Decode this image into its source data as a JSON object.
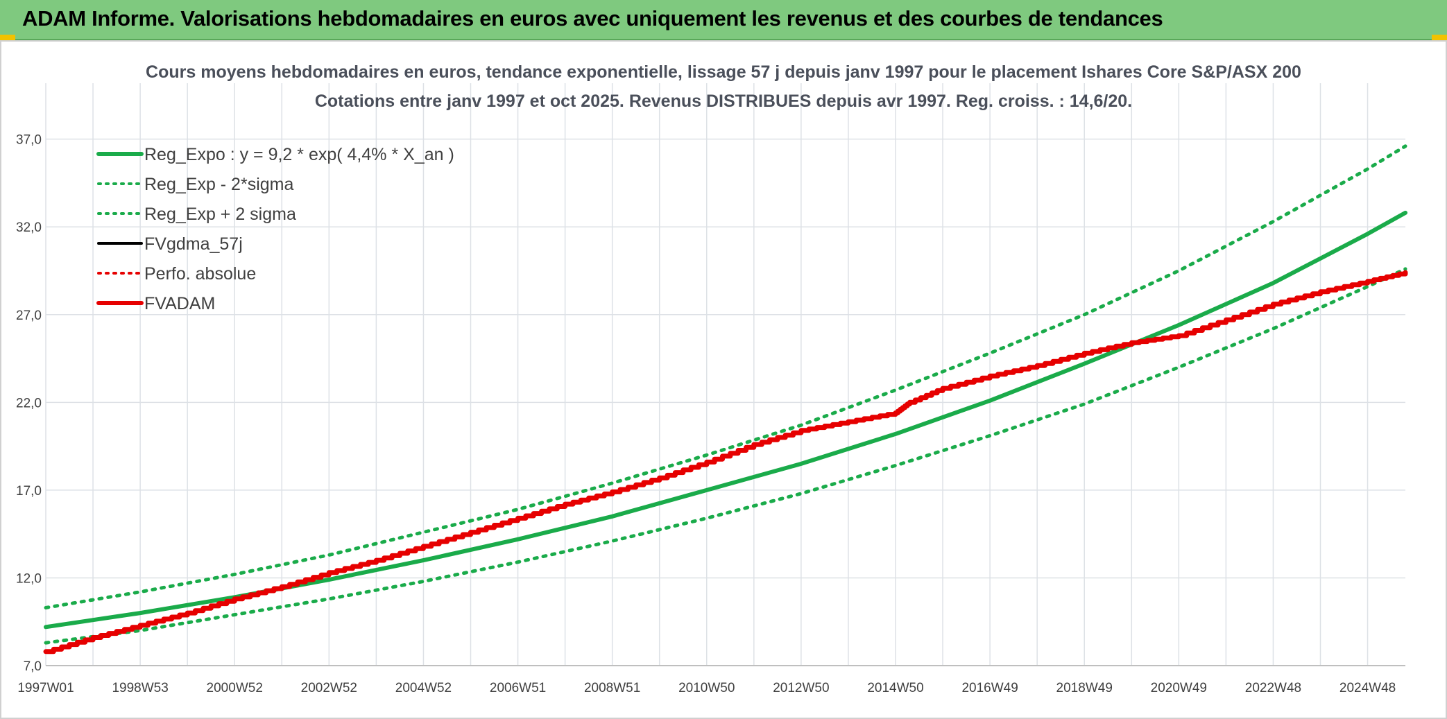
{
  "banner": {
    "title": "ADAM Informe. Valorisations hebdomadaires en euros avec uniquement les revenus et des courbes de tendances"
  },
  "colors": {
    "banner_bg": "#7fc97f",
    "reg_green": "#1aab4a",
    "fvadam_red": "#e60000",
    "grid": "#dde1e6",
    "corner_accent": "#f2c200"
  },
  "chart_data": {
    "type": "line",
    "title": "Cours moyens hebdomadaires en euros, tendance exponentielle, lissage 57 j depuis janv 1997 pour le placement Ishares Core S&P/ASX 200",
    "subtitle": "Cotations entre janv 1997 et oct 2025. Revenus DISTRIBUES depuis avr 1997. Reg. croiss. : 14,6/20.",
    "xlabel": "",
    "ylabel": "",
    "ylim": [
      7,
      39
    ],
    "xlim": [
      1997.0,
      2025.8
    ],
    "yticks": [
      7.0,
      12.0,
      17.0,
      22.0,
      27.0,
      32.0,
      37.0
    ],
    "ytick_labels": [
      "7,0",
      "12,0",
      "17,0",
      "22,0",
      "27,0",
      "32,0",
      "37,0"
    ],
    "xticks": [
      1997.0,
      1999.0,
      2001.0,
      2003.0,
      2005.0,
      2007.0,
      2009.0,
      2011.0,
      2013.0,
      2015.0,
      2017.0,
      2019.0,
      2021.0,
      2023.0,
      2025.0
    ],
    "xtick_labels": [
      "1997W01",
      "1998W53",
      "2000W52",
      "2002W52",
      "2004W52",
      "2006W51",
      "2008W51",
      "2010W50",
      "2012W50",
      "2014W50",
      "2016W49",
      "2018W49",
      "2020W49",
      "2022W48",
      "2024W48"
    ],
    "grid": true,
    "legend_position": "top-left",
    "legend": [
      {
        "label": "Reg_Expo : y = 9,2 * exp( 4,4% *  X_an )",
        "style": "solid-thick",
        "color": "#1aab4a"
      },
      {
        "label": "Reg_Exp - 2*sigma",
        "style": "dotted",
        "color": "#1aab4a"
      },
      {
        "label": "Reg_Exp + 2 sigma",
        "style": "dotted",
        "color": "#1aab4a"
      },
      {
        "label": "FVgdma_57j",
        "style": "solid",
        "color": "#000000"
      },
      {
        "label": "Perfo. absolue",
        "style": "dotted",
        "color": "#e60000"
      },
      {
        "label": "FVADAM",
        "style": "solid-thick",
        "color": "#e60000"
      }
    ],
    "series": [
      {
        "name": "Reg_Expo : y = 9,2 * exp( 4,4% *  X_an )",
        "x": [
          1997,
          1999,
          2001,
          2003,
          2005,
          2007,
          2009,
          2011,
          2013,
          2015,
          2017,
          2019,
          2021,
          2023,
          2025,
          2025.8
        ],
        "values": [
          9.2,
          10.0,
          10.9,
          11.9,
          13.0,
          14.2,
          15.5,
          17.0,
          18.5,
          20.2,
          22.1,
          24.2,
          26.4,
          28.8,
          31.6,
          32.8
        ]
      },
      {
        "name": "Reg_Exp - 2*sigma",
        "x": [
          1997,
          1999,
          2001,
          2003,
          2005,
          2007,
          2009,
          2011,
          2013,
          2015,
          2017,
          2019,
          2021,
          2023,
          2025,
          2025.8
        ],
        "values": [
          8.3,
          9.0,
          9.9,
          10.8,
          11.8,
          12.9,
          14.1,
          15.4,
          16.8,
          18.4,
          20.1,
          21.9,
          24.0,
          26.2,
          28.6,
          29.6
        ]
      },
      {
        "name": "Reg_Exp + 2 sigma",
        "x": [
          1997,
          1999,
          2001,
          2003,
          2005,
          2007,
          2009,
          2011,
          2013,
          2015,
          2017,
          2019,
          2021,
          2023,
          2025,
          2025.8
        ],
        "values": [
          10.3,
          11.2,
          12.2,
          13.3,
          14.6,
          15.9,
          17.4,
          19.0,
          20.7,
          22.7,
          24.8,
          27.0,
          29.5,
          32.3,
          35.3,
          36.6
        ]
      },
      {
        "name": "FVADAM",
        "x": [
          1997,
          1998,
          1999,
          2000,
          2001,
          2002,
          2003,
          2004,
          2005,
          2006,
          2007,
          2008,
          2009,
          2010,
          2011,
          2012,
          2013,
          2014,
          2015,
          2015.3,
          2016,
          2017,
          2018,
          2019,
          2020,
          2021,
          2022,
          2023,
          2024,
          2025,
          2025.8
        ],
        "values": [
          7.8,
          8.6,
          9.3,
          10.0,
          10.8,
          11.5,
          12.3,
          13.0,
          13.8,
          14.6,
          15.4,
          16.2,
          16.9,
          17.7,
          18.6,
          19.6,
          20.4,
          20.9,
          21.4,
          22.0,
          22.8,
          23.5,
          24.1,
          24.8,
          25.4,
          25.8,
          26.7,
          27.6,
          28.3,
          28.9,
          29.4
        ]
      }
    ]
  }
}
